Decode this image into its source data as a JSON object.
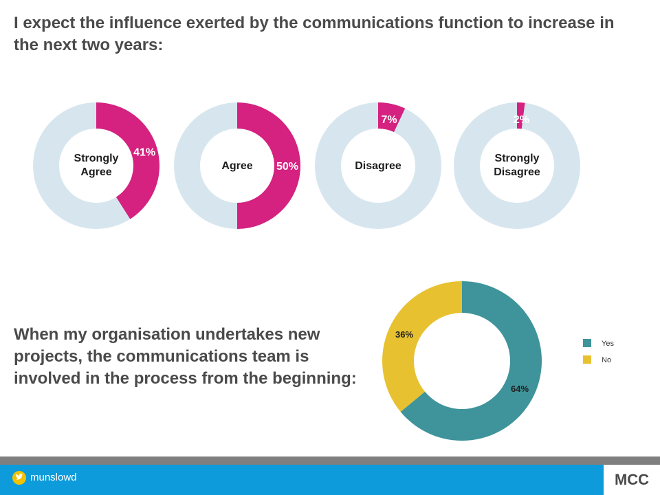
{
  "heading": "I expect the influence exerted by the communications function to increase in the next two years:",
  "subheading": "When my organisation undertakes new projects, the communications team is involved in the process from the beginning:",
  "colors": {
    "donut_track": "#d7e6ee",
    "donut_fill": "#d5217f",
    "yes": "#3e949a",
    "no": "#e8c130"
  },
  "chart_data": [
    {
      "type": "pie",
      "categories": [
        "Strongly Agree",
        "Agree",
        "Disagree",
        "Strongly Disagree"
      ],
      "values": [
        41,
        50,
        7,
        2
      ],
      "labels": [
        "41%",
        "50%",
        "7%",
        "2%"
      ]
    },
    {
      "type": "pie",
      "categories": [
        "Yes",
        "No"
      ],
      "values": [
        64,
        36
      ],
      "labels": [
        "64%",
        "36%"
      ],
      "legend": [
        "Yes",
        "No"
      ]
    }
  ],
  "footer": {
    "handle": "munslowd",
    "logo": "MCC",
    "twitter_icon": "twitter-bird-icon"
  }
}
